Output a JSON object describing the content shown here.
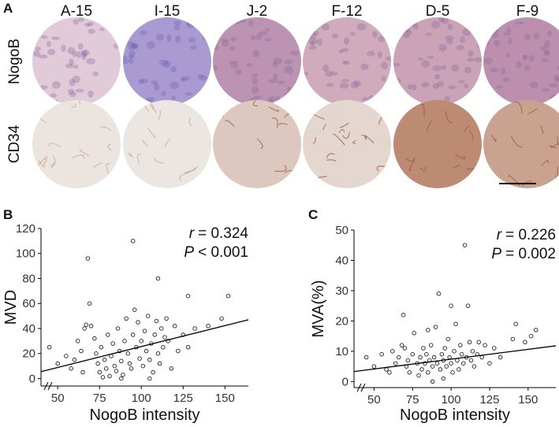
{
  "panel_a": {
    "panel_label": "A",
    "columns": [
      "A-15",
      "I-15",
      "J-2",
      "F-12",
      "D-5",
      "F-9"
    ],
    "rows": [
      "NogoB",
      "CD34"
    ]
  },
  "chart_data": [
    {
      "type": "scatter",
      "panel_label": "B",
      "x_label": "NogoB intensity",
      "y_label": "MVD",
      "stats": [
        {
          "symbol": "r",
          "text": "= 0.324"
        },
        {
          "symbol": "P",
          "text": "< 0.001"
        }
      ],
      "xlim": [
        40,
        164
      ],
      "ylim": [
        -6,
        120
      ],
      "xticks": [
        50,
        75,
        100,
        125,
        150
      ],
      "yticks": [
        0,
        20,
        40,
        60,
        80,
        100,
        120
      ],
      "color": "#222222",
      "x": [
        67,
        68,
        69,
        70,
        72,
        73,
        74,
        75,
        76,
        78,
        79,
        80,
        81,
        82,
        83,
        84,
        85,
        86,
        87,
        88,
        89,
        90,
        91,
        92,
        93,
        94,
        95,
        95,
        96,
        97,
        98,
        99,
        100,
        101,
        102,
        103,
        104,
        105,
        106,
        107,
        108,
        109,
        110,
        110,
        111,
        112,
        113,
        114,
        115,
        116,
        118,
        120,
        122,
        125,
        128,
        128,
        132,
        140,
        148,
        152,
        45,
        50,
        55,
        58,
        60,
        62,
        64,
        65,
        66,
        77,
        88,
        105
      ],
      "values": [
        43,
        96,
        60,
        42,
        32,
        20,
        12,
        5,
        25,
        15,
        8,
        35,
        2,
        18,
        28,
        10,
        6,
        40,
        22,
        14,
        3,
        30,
        48,
        20,
        12,
        8,
        110,
        35,
        55,
        25,
        45,
        16,
        30,
        10,
        38,
        22,
        50,
        15,
        28,
        5,
        35,
        46,
        80,
        20,
        12,
        40,
        25,
        33,
        48,
        30,
        8,
        42,
        22,
        35,
        66,
        25,
        40,
        42,
        48,
        66,
        25,
        12,
        18,
        8,
        15,
        30,
        22,
        5,
        40,
        1,
        0,
        0
      ],
      "fit": {
        "x": [
          40,
          164
        ],
        "values": [
          5.5,
          47
        ]
      }
    },
    {
      "type": "scatter",
      "panel_label": "C",
      "x_label": "NogoB intensity",
      "y_label": "MVA(%)",
      "stats": [
        {
          "symbol": "r",
          "text": "= 0.226"
        },
        {
          "symbol": "P",
          "text": "= 0.002"
        }
      ],
      "xlim": [
        37,
        168
      ],
      "ylim": [
        -2,
        50
      ],
      "xticks": [
        50,
        75,
        100,
        125,
        150
      ],
      "yticks": [
        0,
        10,
        20,
        30,
        40,
        50
      ],
      "color": "#222222",
      "x": [
        45,
        50,
        55,
        58,
        60,
        62,
        64,
        66,
        68,
        69,
        70,
        71,
        72,
        73,
        75,
        76,
        78,
        79,
        80,
        81,
        82,
        83,
        84,
        85,
        86,
        87,
        88,
        89,
        90,
        91,
        92,
        93,
        94,
        95,
        96,
        97,
        98,
        99,
        100,
        101,
        102,
        103,
        104,
        105,
        106,
        107,
        108,
        109,
        110,
        111,
        112,
        113,
        114,
        115,
        117,
        118,
        120,
        122,
        125,
        128,
        132,
        140,
        142,
        148,
        152,
        155,
        100,
        85,
        88,
        95
      ],
      "values": [
        8,
        5,
        9,
        4,
        3,
        10,
        6,
        8,
        12,
        22,
        11,
        5,
        7,
        3,
        9,
        16,
        6,
        2,
        8,
        4,
        11,
        6,
        9,
        3,
        7,
        12,
        5,
        8,
        18,
        6,
        29,
        4,
        9,
        7,
        11,
        5,
        14,
        8,
        6,
        3,
        10,
        19,
        7,
        4,
        12,
        9,
        6,
        45,
        8,
        25,
        13,
        7,
        10,
        5,
        9,
        13,
        8,
        12,
        6,
        11,
        8,
        14,
        19,
        13,
        15,
        17,
        25,
        17,
        0,
        1
      ],
      "fit": {
        "x": [
          37,
          168
        ],
        "values": [
          3.3,
          11.8
        ]
      }
    }
  ]
}
